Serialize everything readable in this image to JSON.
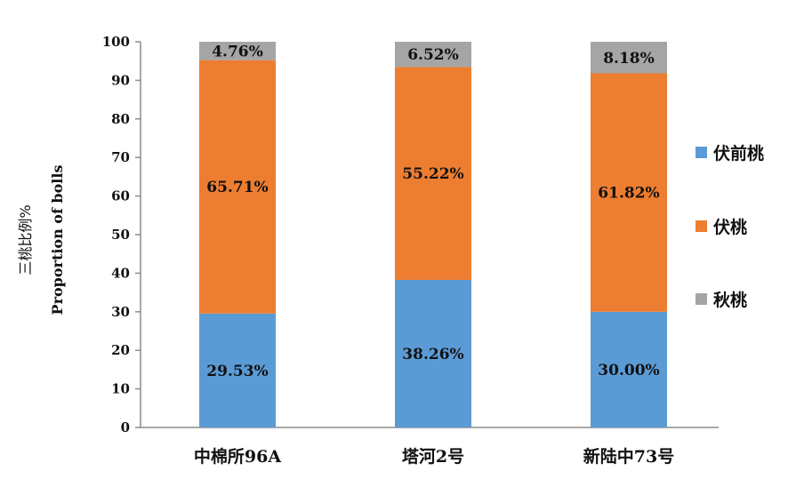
{
  "chart_data": {
    "type": "bar",
    "stacked": true,
    "categories": [
      "中棉所96A",
      "塔河2号",
      "新陆中73号"
    ],
    "series": [
      {
        "name": "伏前桃",
        "color": "#5b9bd5",
        "values": [
          29.53,
          38.26,
          30.0
        ],
        "labels": [
          "29.53%",
          "38.26%",
          "30.00%"
        ]
      },
      {
        "name": "伏桃",
        "color": "#ed7d31",
        "values": [
          65.71,
          55.22,
          61.82
        ],
        "labels": [
          "65.71%",
          "55.22%",
          "61.82%"
        ]
      },
      {
        "name": "秋桃",
        "color": "#a5a5a5",
        "values": [
          4.76,
          6.52,
          8.18
        ],
        "labels": [
          "4.76%",
          "6.52%",
          "8.18%"
        ]
      }
    ],
    "ylabel_cn": "三桃比例%",
    "ylabel_en": "Proportion of  bolls",
    "ylim": [
      0,
      100
    ],
    "yticks": [
      0,
      10,
      20,
      30,
      40,
      50,
      60,
      70,
      80,
      90,
      100
    ],
    "grid": false,
    "legend_position": "right"
  }
}
